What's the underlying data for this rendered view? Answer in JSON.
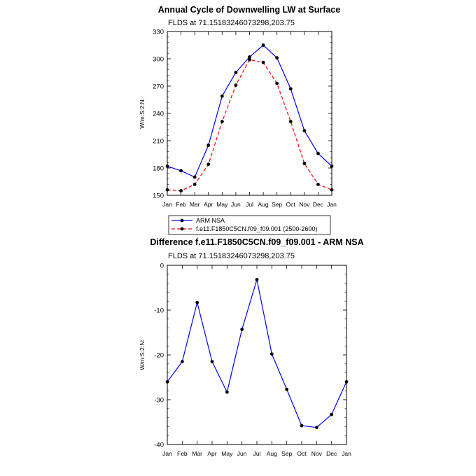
{
  "chart_data": [
    {
      "type": "line",
      "title": "Annual Cycle of Downwelling LW at Surface",
      "subtitle": "FLDS at 71.15183246073298,203.75",
      "ylabel": "W/m:S:2:N:",
      "xlabel": "",
      "categories": [
        "Jan",
        "Feb",
        "Mar",
        "Apr",
        "May",
        "Jun",
        "Jul",
        "Aug",
        "Sep",
        "Oct",
        "Nov",
        "Dec",
        "Jan"
      ],
      "ylim": [
        150,
        330
      ],
      "yticks": [
        150,
        180,
        210,
        240,
        270,
        300,
        330
      ],
      "series": [
        {
          "name": "ARM NSA",
          "color": "#0000ff",
          "dashed": false,
          "values": [
            182,
            177,
            170,
            205,
            259,
            285,
            302,
            315,
            301,
            267,
            221,
            196,
            182
          ]
        },
        {
          "name": "f.e11.F1850C5CN.f09_f09.001 (2500-2600)",
          "color": "#ff0000",
          "dashed": true,
          "values": [
            156,
            155,
            162,
            184,
            231,
            271,
            299,
            296,
            273,
            231,
            185,
            162,
            156
          ]
        }
      ],
      "legend": "bottom"
    },
    {
      "type": "line",
      "title": "Difference f.e11.F1850C5CN.f09_f09.001 - ARM NSA",
      "subtitle": "FLDS at 71.15183246073298,203.75",
      "ylabel": "W/m:S:2:N:",
      "xlabel": "",
      "categories": [
        "Jan",
        "Feb",
        "Mar",
        "Apr",
        "May",
        "Jun",
        "Jul",
        "Aug",
        "Sep",
        "Oct",
        "Nov",
        "Dec",
        "Jan"
      ],
      "ylim": [
        -40,
        0
      ],
      "yticks": [
        -40,
        -30,
        -20,
        -10,
        0
      ],
      "series": [
        {
          "color": "#0000ff",
          "dashed": false,
          "values": [
            -26,
            -21.5,
            -8.3,
            -21.5,
            -28.3,
            -14.3,
            -3.2,
            -19.8,
            -27.7,
            -35.8,
            -36.2,
            -33.3,
            -26
          ]
        }
      ]
    }
  ]
}
